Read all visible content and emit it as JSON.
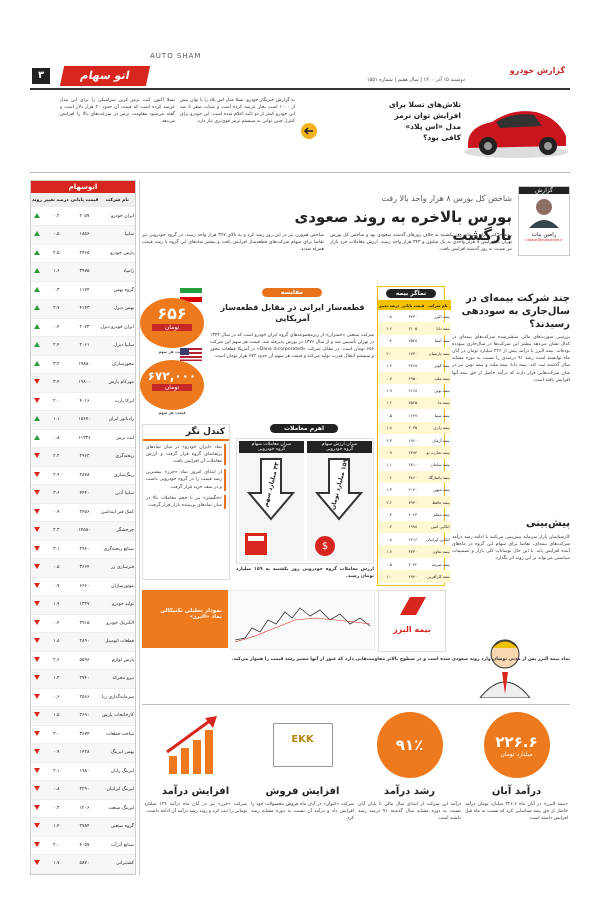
{
  "header": {
    "brand_en": "AUTO SHAM",
    "page": "۳",
    "logo": "اتو سهام",
    "paper": "گزارش خودرو",
    "dateline": "دوشنبه ۱۵ آذر ۱۴۰۰ | سال هفتم | شماره ۱۵۵۱"
  },
  "top_story": {
    "headline": "تلاش‌های تسلا برای افزایش توان ترمز مدل «اس پلاد» کافی بود؟",
    "body": [
      "به گزارش خبرنگار خودرو، تسلا مدل اس پلاد را با توان بیش از ۱۰۰۰ اسب بخار عرضه کرده است و شتاب صفر تا صد این خودرو کمتر از دو ثانیه اعلام شده است. این خودرو برای کنترل چنین توانی به سیستم ترمز قوی‌تری نیاز دارد.",
      "تسلا اکنون کیت ترمز کربن سرامیکی را برای این مدل عرضه کرده است که قیمت آن حدود ۲۰ هزار دلار است و گفته می‌شود مقاومت ترمز در سرعت‌های بالا را افزایش می‌دهد."
    ]
  },
  "stock_table": {
    "title": "اتوسهام",
    "columns": [
      "نام شرکت",
      "قیمت پایانی",
      "درصد تغییر",
      "روند"
    ],
    "rows": [
      [
        "ایران خودرو",
        "۲۰۵۷",
        "۰.۲",
        "up"
      ],
      [
        "سایپا",
        "۱۸۵۶",
        "۰.۵",
        "up"
      ],
      [
        "پارس خودرو",
        "۲۴۶۵",
        "۲.۵",
        "up"
      ],
      [
        "زامیاد",
        "۳۹۷۵",
        "۱.۶",
        "up"
      ],
      [
        "گروه بهمن",
        "۱۱۷۴",
        "۰.۳",
        "up"
      ],
      [
        "بهمن دیزل",
        "۴۱۴۳",
        "۲.۷",
        "up"
      ],
      [
        "ایران خودرو دیزل",
        "۲۰۷۳",
        "۰.۴",
        "up"
      ],
      [
        "سایپا دیزل",
        "۲۰۶۱",
        "۲.۴",
        "up"
      ],
      [
        "محورسازان",
        "۱۹۸۸۰",
        "۳.۲",
        "up"
      ],
      [
        "مهرکام پارس",
        "۱۹۸۰۰",
        "۳.۴",
        "down"
      ],
      [
        "ایرکا پارت",
        "۴۰۱۶",
        "۲.۰",
        "down"
      ],
      [
        "رادیاتور ایران",
        "۱۵۶۷۰",
        "۱.۱",
        "up"
      ],
      [
        "لنت ترمز",
        "۱۱۳۳۶",
        "۰.۸",
        "up"
      ],
      [
        "ریخته‌گری",
        "۲۹۶۳",
        "۲.۲",
        "down"
      ],
      [
        "رینگ‌سازی",
        "۲۸۷۸",
        "۲.۹",
        "down"
      ],
      [
        "سایپا آذین",
        "۴۴۴۰",
        "۳.۶",
        "down"
      ],
      [
        "کمک فنر ایندامین",
        "۲۴۵۶",
        "۰.۹",
        "down"
      ],
      [
        "چرخشگر",
        "۱۴۵۸۰",
        "۲.۳",
        "down"
      ],
      [
        "صنایع ریخته‌گری",
        "۲۹۶۰",
        "۳.۱",
        "down"
      ],
      [
        "فنرسازی زر",
        "۳۶۶۴",
        "۰.۵",
        "down"
      ],
      [
        "موتورسازان",
        "۶۶۶۰",
        "۰.۷",
        "down"
      ],
      [
        "تولید خودرو",
        "۱۳۲۷",
        "۱.۹",
        "down"
      ],
      [
        "الکتریک خودرو",
        "۲۹۱۵",
        "۰.۴",
        "down"
      ],
      [
        "قطعات اتومبیل",
        "۲۸۹۰",
        "۱.۸",
        "down"
      ],
      [
        "پارس لوازم",
        "۵۵۹۶",
        "۲.۶",
        "down"
      ],
      [
        "نیرو محرکه",
        "۲۷۴۰",
        "۱.۲",
        "down"
      ],
      [
        "سرمایه‌گذاری رنا",
        "۲۵۶۶",
        "۰.۶",
        "down"
      ],
      [
        "کارخانجات پارس",
        "۲۶۹۰",
        "۱.۵",
        "down"
      ],
      [
        "ساخت قطعات",
        "۳۶۷۴",
        "۳.۰",
        "down"
      ],
      [
        "بهمن لیزینگ",
        "۱۴۲۸",
        "۰.۹",
        "down"
      ],
      [
        "لیزینگ رایان",
        "۱۹۸۰",
        "۲.۱",
        "down"
      ],
      [
        "لیزینگ ایرانیان",
        "۲۲۹۰",
        "۰.۸",
        "down"
      ],
      [
        "لیزینگ صنعت",
        "۱۲۰۶",
        "۰.۳",
        "down"
      ],
      [
        "گروه صنعتی",
        "۲۷۸۴",
        "۱.۴",
        "down"
      ],
      [
        "صنایع آذرآب",
        "۴۰۵۷",
        "۲.۰",
        "down"
      ],
      [
        "کشتیرانی",
        "۵۸۷۰",
        "۱.۷",
        "down"
      ]
    ]
  },
  "main": {
    "kicker": "شاخص کل بورس ۸ هزار واحد بالا رفت",
    "headline": "بورس بالاخره به روند صعودی بازگشت",
    "report_label": "گزارش",
    "reporter": "رامین بیات",
    "email": "r.bayat@autosham.ir",
    "body": [
      "روند حرکتی بازار سرمایه روز یکشنبه به خلاف روزهای گذشته صعودی بود و شاخص کل بورس تهران با افزایش ۸ هزار واحدی به یک میلیون و ۳۴۳ هزار واحد رسید. ارزش معاملات خرد بازار نیز نسبت به روز گذشته افزایش یافت.",
      "شاخص هم‌وزن نیز در این روز رشد کرد و به بالای ۳۶۷ هزار واحد رسید. در گروه خودرویی نیز تقاضا برای سهام شرکت‌های قطعه‌ساز افزایش یافت و بیشتر نمادهای این گروه با رشد قیمت همراه شدند."
    ]
  },
  "insurance_box": {
    "title": "نماگر بیمه",
    "columns": [
      "نام شرکت",
      "قیمت پایانی",
      "درصد تغییر"
    ],
    "rows": [
      [
        "بیمه البرز",
        "۳۴۳۰",
        "۰.۸"
      ],
      [
        "بیمه دانا",
        "۲۱۰۵",
        "۱.۲"
      ],
      [
        "بیمه آسیا",
        "۲۵۴۸",
        "۰.۴"
      ],
      [
        "بیمه پارسیان",
        "۱۷۳۰",
        "۲.۰"
      ],
      [
        "بیمه کوثر",
        "۲۴۶۸",
        "۱.۴"
      ],
      [
        "بیمه ملت",
        "۲۹۵۰",
        "۰.۷"
      ],
      [
        "بیمه نوین",
        "۲۱۶۸",
        "۱.۹"
      ],
      [
        "بیمه ما",
        "۴۵۲۵",
        "۱.۶"
      ],
      [
        "بیمه سینا",
        "۱۶۴۷",
        "۰.۵"
      ],
      [
        "بیمه رازی",
        "۲۰۳۵",
        "۱.۸"
      ],
      [
        "بیمه آرمان",
        "۱۹۶۰",
        "۲.۳"
      ],
      [
        "بیمه تجارت نو",
        "۲۳۸۴",
        "۰.۹"
      ],
      [
        "بیمه سامان",
        "۲۸۱۰",
        "۱.۱"
      ],
      [
        "بیمه پاسارگاد",
        "۳۸۶۰",
        "۰.۶"
      ],
      [
        "بیمه میهن",
        "۲۰۴۰",
        "۱.۳"
      ],
      [
        "بیمه حافظ",
        "۳۹۳۰",
        "۲.۶"
      ],
      [
        "بیمه معلم",
        "۲۰۲۳",
        "۰.۳"
      ],
      [
        "اتکایی امین",
        "۱۹۹۸",
        "۰.۲"
      ],
      [
        "اتکایی ایرانیان",
        "۲۲۱۶",
        "۰.۸"
      ],
      [
        "بیمه تعاون",
        "۳۷۳۰",
        "۱.۷"
      ],
      [
        "بیمه سرمد",
        "۲۰۴۲",
        "۰.۵"
      ],
      [
        "بیمه کارآفرین",
        "۲۹۴۰",
        "۱.۰"
      ]
    ]
  },
  "side": {
    "headline": "چند شرکت بیمه‌ای در سال‌جاری به سوددهی رسیدند؟",
    "body": "بررسی صورت‌های مالی منتشرشده شرکت‌های بیمه‌ای در کدال نشان می‌دهد بیشتر این شرکت‌ها در سال‌جاری سودده بوده‌اند. بیمه البرز با درآمد بیش از ۲۲۶ میلیارد تومان در آبان ماه توانسته است رشد ۹۱ درصدی را نسبت به دوره مشابه سال گذشته ثبت کند. بیمه دانا، بیمه ملت و بیمه نوین نیز در میان شرکت‌هایی قرار دارند که درآمد حاصل از حق بیمه آنها افزایش یافته است.",
    "forecast_title": "پیش‌بینی",
    "forecast_body": "کارشناسان بازار سرمایه پیش‌بینی می‌کنند با ادامه رشد درآمد شرکت‌های بیمه‌ای، تقاضا برای سهام این گروه در ماه‌های آینده افزایش یابد. با این حال نوسانات کلی بازار و تصمیمات سیاستی می‌تواند بر این روند اثر بگذارد."
  },
  "compare": {
    "label": "مقایسه",
    "headline": "قطعه‌ساز ایرانی در مقابل قطعه‌ساز آمریکایی",
    "iran_value": "۶۵۶",
    "iran_unit": "تومان",
    "iran_caption": "قیمت هر سهم",
    "us_value": "۶۷۲,۰۰۰",
    "us_unit": "تومان",
    "us_caption": "قیمت هر سهم",
    "body": "شرکت صنعتی «خمیران» از زیرمجموعه‌های گروه ایران خودرو است که در سال ۱۳۴۳ در تهران تأسیس شد و از سال ۱۳۷۶ در بورس پذیرفته شد. قیمت هر سهم این شرکت ۶۵۶ تومان است. در مقابل شرکت «Dana Incorporated» در آمریکا قطعات محور و سیستم انتقال قدرت تولید می‌کند و قیمت هر سهم آن حدود ۶۷۲ هزار تومان است."
  },
  "candle": {
    "title": "کندل نگر",
    "items": [
      "نماد «ایران خودرو» در میان نمادهای پرتقاضای گروه قرار گرفت و ارزش معاملات آن افزایش یافت.",
      "از ابتدای امروز نماد «خزر» بیشترین رشد قیمت را در گروه خودرویی داشت و در صف خرید قرار گرفت.",
      "«خگستر» نیز با حجم معاملات بالا در میان نمادهای پربیننده بازار قرار گرفت."
    ]
  },
  "leverage": {
    "label": "اهرم معاملات",
    "box1_title": "میزان ارزش سهام",
    "box1_sub": "گروه خودرویی",
    "box1_value": "۱۵۹ میلیارد تومان",
    "box2_title": "میزان معاملات سهام",
    "box2_sub": "گروه خودرویی",
    "box2_value": "۴۳ میلیارد سهم",
    "caption": "ارزش معاملات گروه خودرویی روز یکشنبه به ۱۵۹ میلیارد تومان رسید."
  },
  "technical": {
    "chart_caption": "نمودار تحلیلی تکنیکالی نماد «البرز»",
    "logo_text": "بیمه البرز",
    "caption": "نماد بیمه البرز پس از مدتی نوسان وارد روند صعودی شده است و در سطوح بالاتر مقاومت‌هایی دارد که عبور از آنها مسیر رشد قیمت را هموار می‌کند."
  },
  "kpis": [
    {
      "title": "درآمد آبان",
      "value": "۲۲۶.۶",
      "unit": "میلیارد تومان",
      "body": "«بیمه البرز» در آبان ماه ۲۲۶.۶ میلیارد تومان درآمد حاصل از حق بیمه شناسایی کرد که نسبت به ماه قبل افزایش داشته است."
    },
    {
      "title": "رشد درآمد",
      "value": "۹۱٪",
      "body": "درآمد این شرکت از ابتدای سال مالی تا پایان آبان نسبت به دوره مشابه سال گذشته ۹۱ درصد رشد داشته است."
    },
    {
      "title": "افزایش فروش",
      "logo": "EKK",
      "body": "شرکت «کیوان» در آبان ماه فروش محصولات خود را افزایش داد و درآمد آن نسبت به دوره مشابه رشد کرد."
    },
    {
      "title": "افزایش درآمد",
      "body": "شرکت «خزر» نیز در آبان ماه درآمد ۱۲۴ میلیارد تومانی را ثبت کرد و روند رشد درآمد آن ادامه داشت."
    }
  ]
}
